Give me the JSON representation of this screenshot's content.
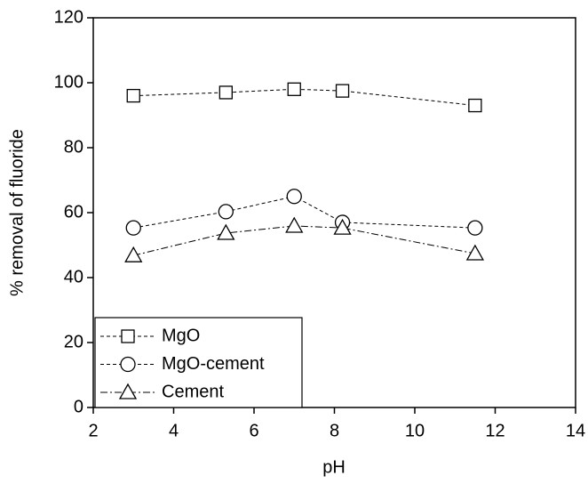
{
  "chart_data": {
    "type": "line",
    "x_label": "pH",
    "y_label": "% removal of fluoride",
    "xlim": [
      2,
      14
    ],
    "xticks": [
      2,
      4,
      6,
      8,
      10,
      12,
      14
    ],
    "ylim": [
      0,
      120
    ],
    "yticks": [
      0,
      20,
      40,
      60,
      80,
      100,
      120
    ],
    "legend": "lower left",
    "series": [
      {
        "name": "MgO",
        "color": "#000000",
        "marker": "square",
        "dash": "4,3",
        "x": [
          3,
          5.3,
          7,
          8.2,
          11.5
        ],
        "values": [
          96,
          97,
          98,
          97.5,
          93
        ]
      },
      {
        "name": "MgO-cement",
        "color": "#000000",
        "marker": "circle",
        "dash": "4,3",
        "x": [
          3,
          5.3,
          7,
          8.2,
          11.5
        ],
        "values": [
          55.3,
          60.3,
          65,
          57,
          55.3
        ]
      },
      {
        "name": "Cement",
        "color": "#000000",
        "marker": "triangle",
        "dash": "8,3,2,3",
        "x": [
          3,
          5.3,
          7,
          8.2,
          11.5
        ],
        "values": [
          46.8,
          53.7,
          55.9,
          55.3,
          47.4
        ]
      }
    ]
  }
}
